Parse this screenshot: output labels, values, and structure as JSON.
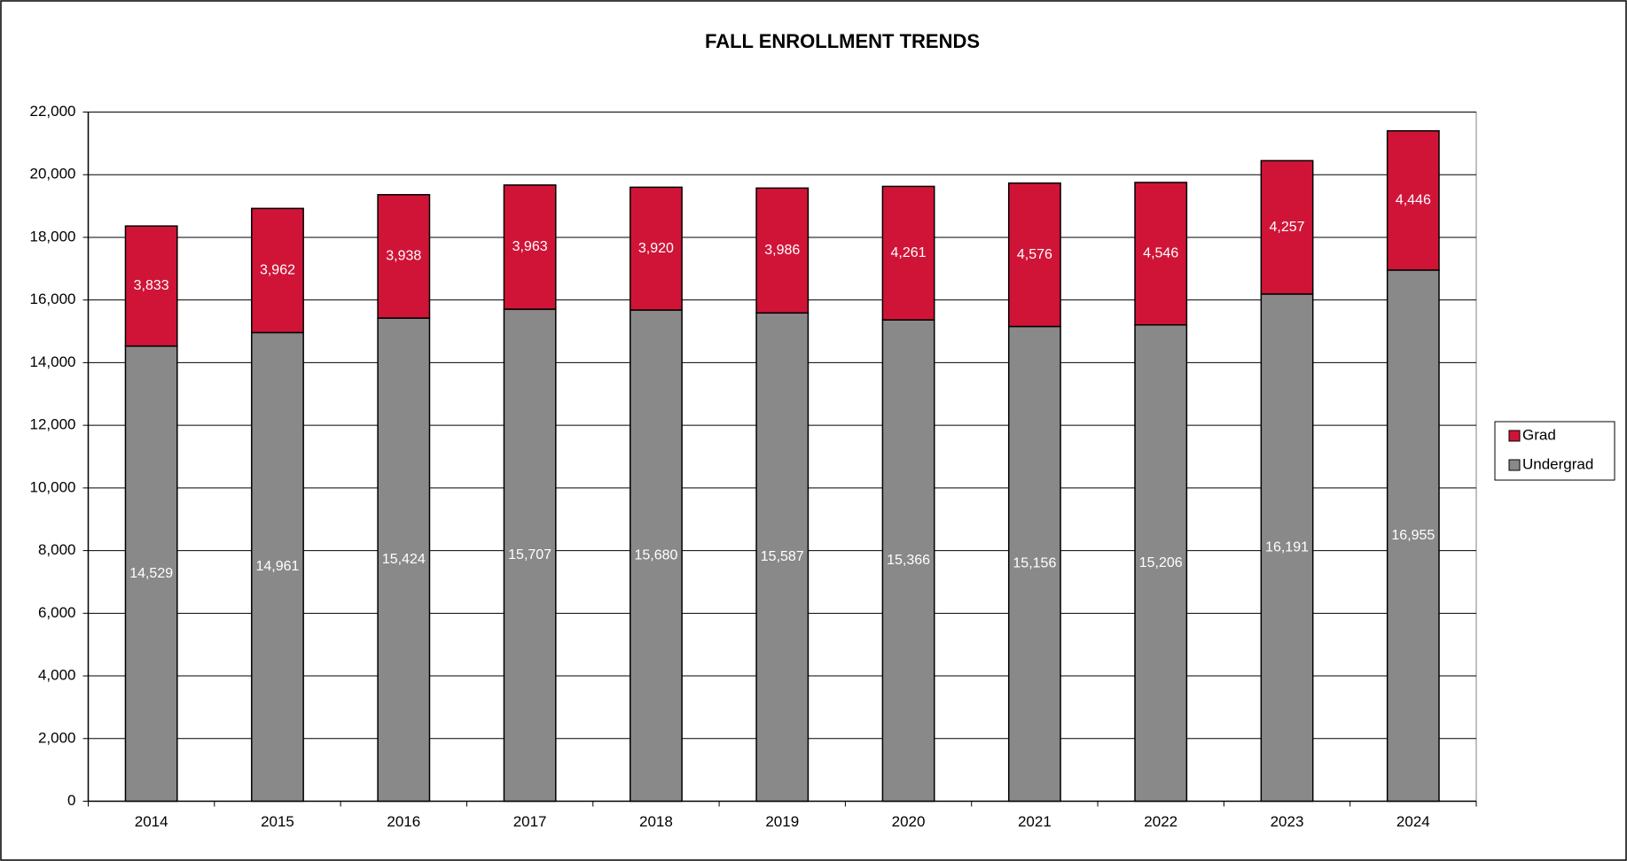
{
  "chart_data": {
    "type": "stacked-bar",
    "title": "FALL ENROLLMENT TRENDS",
    "categories": [
      "2014",
      "2015",
      "2016",
      "2017",
      "2018",
      "2019",
      "2020",
      "2021",
      "2022",
      "2023",
      "2024"
    ],
    "series": [
      {
        "name": "Undergrad",
        "color": "#898989",
        "values": [
          14529,
          14961,
          15424,
          15707,
          15680,
          15587,
          15366,
          15156,
          15206,
          16191,
          16955
        ],
        "value_labels": [
          "14,529",
          "14,961",
          "15,424",
          "15,707",
          "15,680",
          "15,587",
          "15,366",
          "15,156",
          "15,206",
          "16,191",
          "16,955"
        ]
      },
      {
        "name": "Grad",
        "color": "#d01437",
        "values": [
          3833,
          3962,
          3938,
          3963,
          3920,
          3986,
          4261,
          4576,
          4546,
          4257,
          4446
        ],
        "value_labels": [
          "3,833",
          "3,962",
          "3,938",
          "3,963",
          "3,920",
          "3,986",
          "4,261",
          "4,576",
          "4,546",
          "4,257",
          "4,446"
        ]
      }
    ],
    "ylim": [
      0,
      22000
    ],
    "yticks": [
      0,
      {
        "value": 2000,
        "label": "2,000"
      },
      {
        "value": 4000,
        "label": "4,000"
      },
      {
        "value": 6000,
        "label": "6,000"
      },
      {
        "value": 8000,
        "label": "8,000"
      },
      {
        "value": 10000,
        "label": "10,000"
      },
      {
        "value": 12000,
        "label": "12,000"
      },
      {
        "value": 14000,
        "label": "14,000"
      },
      {
        "value": 16000,
        "label": "16,000"
      },
      {
        "value": 18000,
        "label": "18,000"
      },
      {
        "value": 20000,
        "label": "20,000"
      },
      {
        "value": 22000,
        "label": "22,000"
      }
    ],
    "grid": true,
    "legend": "right"
  }
}
